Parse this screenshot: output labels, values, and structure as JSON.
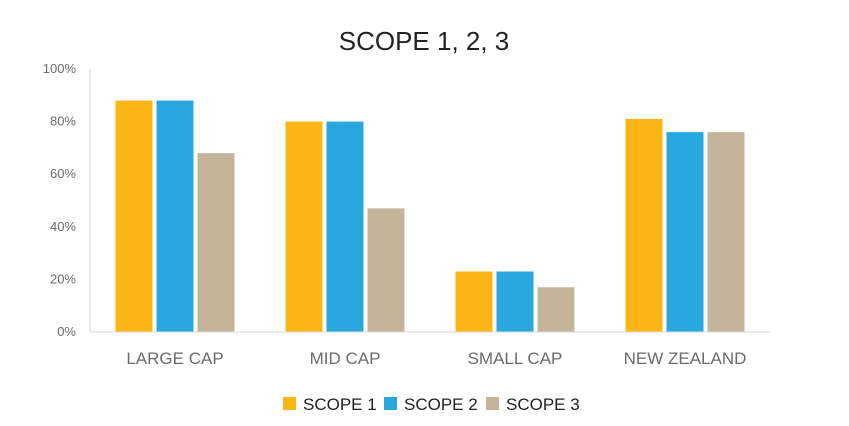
{
  "chart_data": {
    "type": "bar",
    "title": "SCOPE 1, 2, 3",
    "xlabel": "",
    "ylabel": "",
    "categories": [
      "LARGE CAP",
      "MID CAP",
      "SMALL CAP",
      "NEW ZEALAND"
    ],
    "series": [
      {
        "name": "SCOPE 1",
        "color": "#FBB515",
        "values": [
          88,
          80,
          23,
          81
        ]
      },
      {
        "name": "SCOPE 2",
        "color": "#29A8E0",
        "values": [
          88,
          80,
          23,
          76
        ]
      },
      {
        "name": "SCOPE 3",
        "color": "#C4B59A",
        "values": [
          68,
          47,
          17,
          76
        ]
      }
    ],
    "ylim": [
      0,
      100
    ],
    "yticks": [
      "0%",
      "20%",
      "40%",
      "60%",
      "80%",
      "100%"
    ],
    "grid": false,
    "legend_position": "bottom"
  }
}
